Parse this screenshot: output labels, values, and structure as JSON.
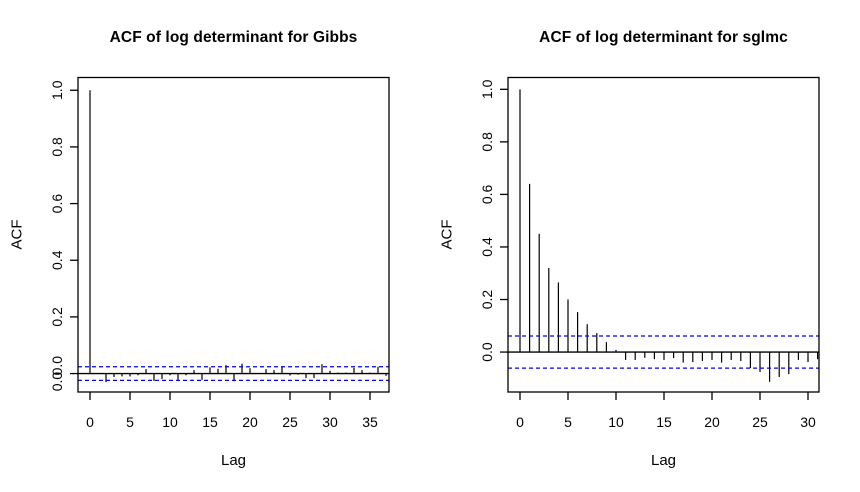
{
  "colors": {
    "background": "#ffffff",
    "axis": "#000000",
    "bars": "#000000",
    "confidence_line": "#0000ee"
  },
  "chart_data": [
    {
      "type": "bar",
      "title": "ACF of log determinant for Gibbs",
      "xlabel": "Lag",
      "ylabel": "ACF",
      "x_ticks": [
        0,
        5,
        10,
        15,
        20,
        25,
        30,
        35
      ],
      "y_ticks": [
        1.0,
        0.8,
        0.6,
        0.4,
        0.2,
        0.0
      ],
      "y_labels": [
        {
          "text": "1.0",
          "at": 1.0
        },
        {
          "text": "0.8",
          "at": 0.8
        },
        {
          "text": "0.6",
          "at": 0.6
        },
        {
          "text": "0.4",
          "at": 0.4
        },
        {
          "text": "0.2",
          "at": 0.2
        },
        {
          "text": "0.0",
          "at": 0.028
        },
        {
          "text": "0.0",
          "at": -0.028
        }
      ],
      "confidence_level": 0.024,
      "ylim": [
        -0.065,
        1.045
      ],
      "xlim": [
        -1.5,
        38.9
      ],
      "legend": "none",
      "grid": false,
      "acf_values": [
        1.0,
        0.002,
        -0.03,
        -0.012,
        -0.01,
        -0.01,
        -0.006,
        0.016,
        -0.026,
        -0.019,
        -0.006,
        -0.022,
        -0.006,
        0.012,
        -0.022,
        0.022,
        0.017,
        0.03,
        -0.027,
        0.035,
        0.019,
        0.002,
        0.016,
        0.012,
        0.024,
        -0.007,
        -0.004,
        -0.016,
        -0.016,
        0.033,
        0.01,
        0.004,
        0.004,
        0.02,
        0.012,
        0.004,
        0.024,
        -0.008
      ]
    },
    {
      "type": "bar",
      "title": "ACF of log determinant for sglmc",
      "xlabel": "Lag",
      "ylabel": "ACF",
      "x_ticks": [
        0,
        5,
        10,
        15,
        20,
        25,
        30
      ],
      "y_ticks": [
        1.0,
        0.8,
        0.6,
        0.4,
        0.2,
        0.0
      ],
      "y_labels": [
        {
          "text": "1.0",
          "at": 1.0
        },
        {
          "text": "0.8",
          "at": 0.8
        },
        {
          "text": "0.6",
          "at": 0.6
        },
        {
          "text": "0.4",
          "at": 0.4
        },
        {
          "text": "0.2",
          "at": 0.2
        },
        {
          "text": "0.0",
          "at": 0.0
        }
      ],
      "confidence_level": 0.061,
      "ylim": [
        -0.152,
        1.045
      ],
      "xlim": [
        -1.24,
        32.3
      ],
      "legend": "none",
      "grid": false,
      "acf_values": [
        1.0,
        0.64,
        0.45,
        0.32,
        0.265,
        0.2,
        0.152,
        0.106,
        0.072,
        0.038,
        0.008,
        -0.03,
        -0.03,
        -0.022,
        -0.027,
        -0.03,
        -0.023,
        -0.04,
        -0.038,
        -0.034,
        -0.03,
        -0.04,
        -0.03,
        -0.034,
        -0.061,
        -0.076,
        -0.113,
        -0.095,
        -0.084,
        -0.03,
        -0.038,
        -0.027
      ]
    }
  ]
}
